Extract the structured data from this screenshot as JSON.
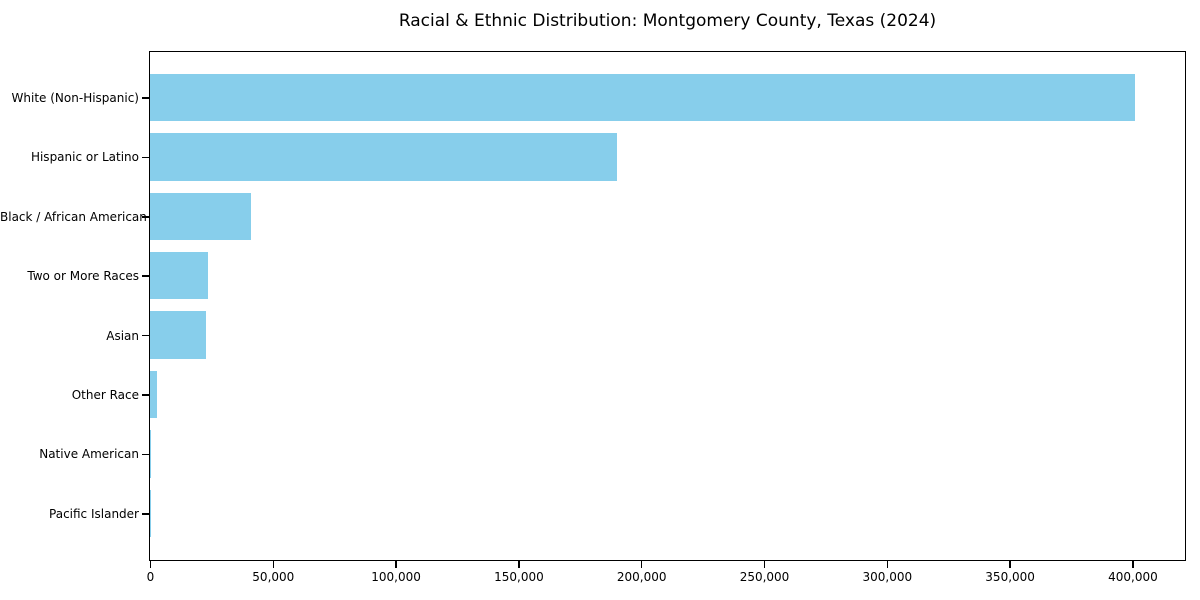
{
  "page": {
    "background_color": "#ffffff"
  },
  "chart_data": {
    "type": "bar",
    "orientation": "horizontal",
    "title": "Racial & Ethnic Distribution: Montgomery County, Texas (2024)",
    "categories": [
      "White (Non-Hispanic)",
      "Hispanic or Latino",
      "Black / African American",
      "Two or More Races",
      "Asian",
      "Other Race",
      "Native American",
      "Pacific Islander"
    ],
    "values": [
      401000,
      190200,
      41300,
      23600,
      22800,
      2900,
      450,
      200
    ],
    "xlabel": "",
    "ylabel": "",
    "xlim": [
      0,
      421000
    ],
    "x_ticks": [
      0,
      50000,
      100000,
      150000,
      200000,
      250000,
      300000,
      350000,
      400000
    ],
    "x_tick_labels": [
      "0",
      "50,000",
      "100,000",
      "150,000",
      "200,000",
      "250,000",
      "300,000",
      "350,000",
      "400,000"
    ],
    "bar_color": "#87CEEB",
    "axis_color": "#000000",
    "text_color": "#000000",
    "grid": false,
    "legend": null
  }
}
